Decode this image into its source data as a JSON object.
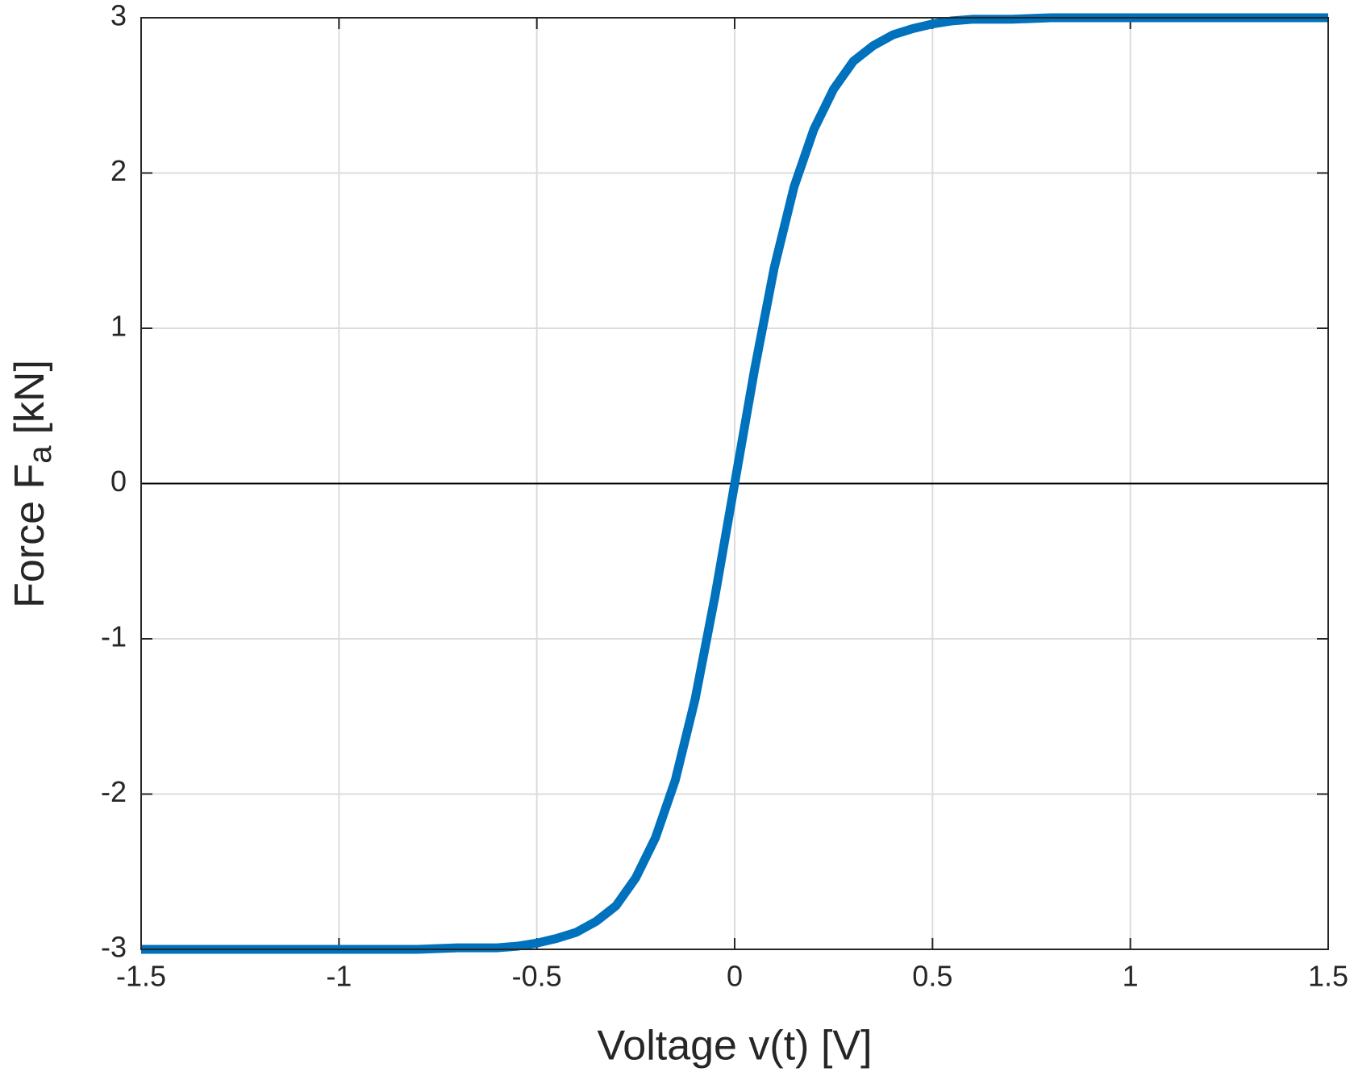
{
  "chart_data": {
    "type": "line",
    "x_label": "Voltage v(t) [V]",
    "y_label": {
      "main": "Force F",
      "sub": "a",
      "unit": "[kN]"
    },
    "x": [
      -1.5,
      -1,
      -0.8,
      -0.7,
      -0.6,
      -0.55,
      -0.5,
      -0.45,
      -0.4,
      -0.35,
      -0.3,
      -0.25,
      -0.2,
      -0.15,
      -0.1,
      -0.05,
      0,
      0.05,
      0.1,
      0.15,
      0.2,
      0.25,
      0.3,
      0.35,
      0.4,
      0.45,
      0.5,
      0.55,
      0.6,
      0.7,
      0.8,
      1,
      1.5
    ],
    "series": [
      {
        "color": "#0072bd",
        "values": [
          -3,
          -3,
          -3,
          -2.99,
          -2.99,
          -2.98,
          -2.96,
          -2.93,
          -2.89,
          -2.82,
          -2.72,
          -2.54,
          -2.28,
          -1.91,
          -1.39,
          -0.73,
          0,
          0.73,
          1.39,
          1.91,
          2.28,
          2.54,
          2.72,
          2.82,
          2.89,
          2.93,
          2.96,
          2.98,
          2.99,
          2.99,
          3,
          3,
          3
        ]
      }
    ],
    "xlim": [
      -1.5,
      1.5
    ],
    "ylim": [
      -3,
      3
    ],
    "xticks": [
      -1.5,
      -1,
      -0.5,
      0,
      0.5,
      1,
      1.5
    ],
    "yticks": [
      -3,
      -2,
      -1,
      0,
      1,
      2,
      3
    ],
    "grid": true,
    "zero_line": true
  }
}
